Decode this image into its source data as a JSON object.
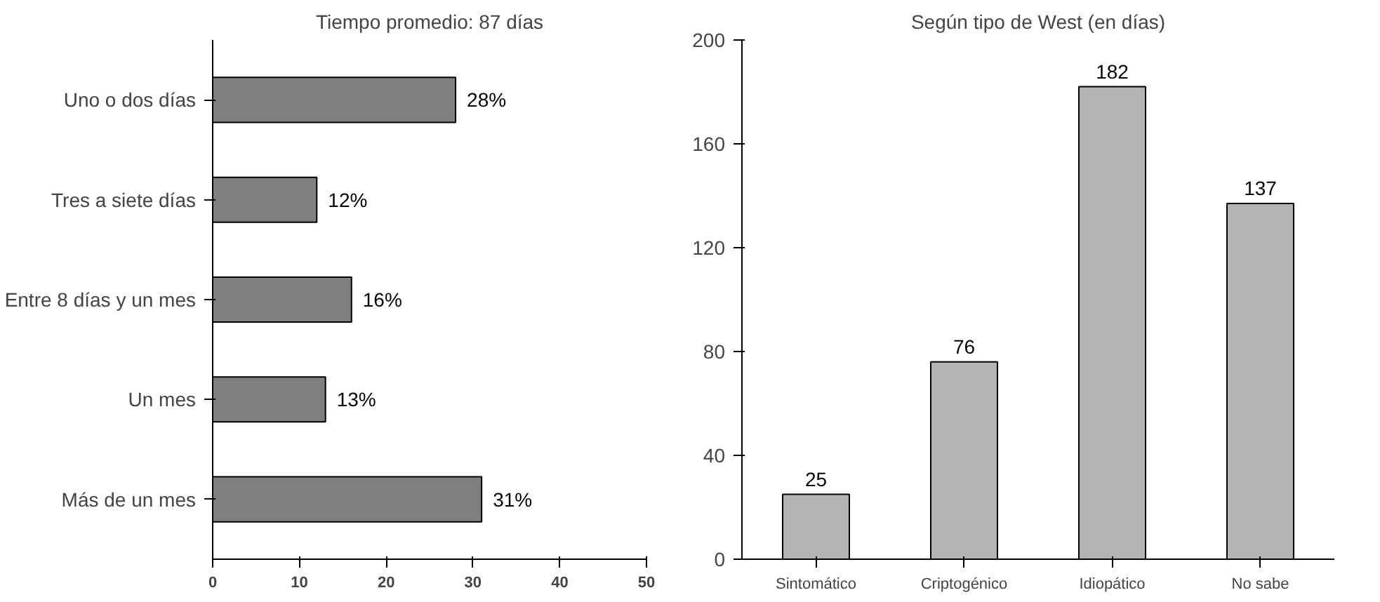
{
  "chart_data": [
    {
      "type": "bar",
      "orientation": "horizontal",
      "title": "Tiempo promedio: 87 días",
      "categories": [
        "Uno o dos días",
        "Tres a siete días",
        "Entre 8 días y un mes",
        "Un mes",
        "Más de un mes"
      ],
      "values": [
        28,
        12,
        16,
        13,
        31
      ],
      "value_labels": [
        "28%",
        "12%",
        "16%",
        "13%",
        "31%"
      ],
      "color": "#7f7f7f",
      "xlim": [
        0,
        50
      ],
      "xticks": [
        0,
        10,
        20,
        30,
        40,
        50
      ]
    },
    {
      "type": "bar",
      "title": "Según tipo de West (en días)",
      "categories": [
        "Sintomático",
        "Criptogénico",
        "Idiopático",
        "No sabe"
      ],
      "values": [
        25,
        76,
        182,
        137
      ],
      "data_labels": true,
      "color": "#b4b4b4",
      "ylim": [
        0,
        200
      ],
      "yticks": [
        0,
        40,
        80,
        120,
        160,
        200
      ]
    }
  ]
}
